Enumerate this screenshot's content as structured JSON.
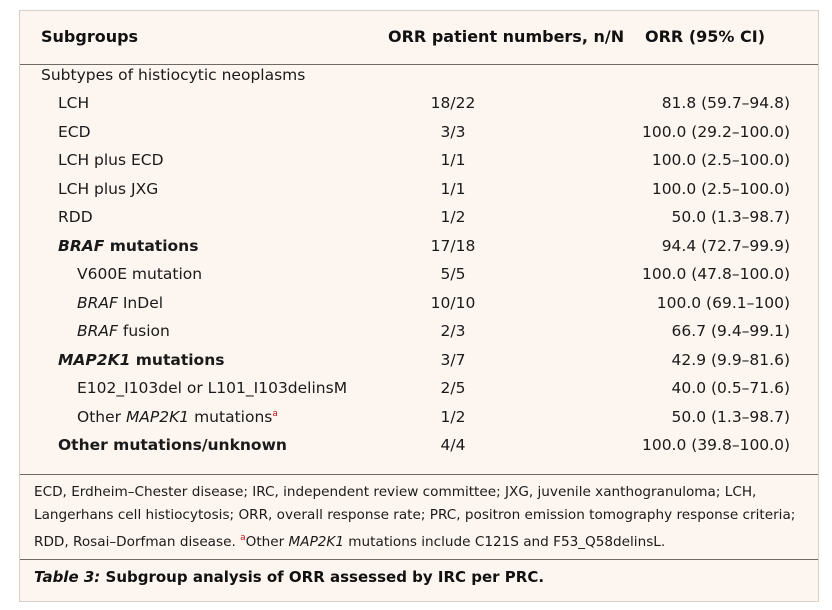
{
  "header": {
    "col_subgroups": "Subgroups",
    "col_numbers": "ORR patient numbers, n/N",
    "col_orr": "ORR (95% CI)"
  },
  "section_label": "Subtypes of histiocytic neoplasms",
  "rows": [
    {
      "subgroup": "LCH",
      "n": "18/22",
      "orr": "81.8 (59.7–94.8)"
    },
    {
      "subgroup": "ECD",
      "n": "3/3",
      "orr": "100.0 (29.2–100.0)"
    },
    {
      "subgroup": "LCH plus ECD",
      "n": "1/1",
      "orr": "100.0 (2.5–100.0)"
    },
    {
      "subgroup": "LCH plus JXG",
      "n": "1/1",
      "orr": "100.0 (2.5–100.0)"
    },
    {
      "subgroup": "RDD",
      "n": "1/2",
      "orr": "50.0 (1.3–98.7)"
    },
    {
      "subgroup_italic": "BRAF",
      "subgroup": " mutations",
      "n": "17/18",
      "orr": "94.4 (72.7–99.9)"
    },
    {
      "subgroup": "V600E mutation",
      "n": "5/5",
      "orr": "100.0 (47.8–100.0)"
    },
    {
      "subgroup_italic": "BRAF",
      "subgroup": " InDel",
      "n": "10/10",
      "orr": "100.0 (69.1–100)"
    },
    {
      "subgroup_italic": "BRAF",
      "subgroup": " fusion",
      "n": "2/3",
      "orr": "66.7 (9.4–99.1)"
    },
    {
      "subgroup_italic": "MAP2K1",
      "subgroup": " mutations",
      "n": "3/7",
      "orr": "42.9 (9.9–81.6)"
    },
    {
      "subgroup": "E102_I103del or L101_I103delinsM",
      "n": "2/5",
      "orr": "40.0 (0.5–71.6)"
    },
    {
      "subgroup_pre": "Other ",
      "subgroup_italic": "MAP2K1",
      "subgroup": " mutations",
      "sup": "a",
      "n": "1/2",
      "orr": "50.0 (1.3–98.7)"
    },
    {
      "subgroup": "Other mutations/unknown",
      "n": "4/4",
      "orr": "100.0 (39.8–100.0)"
    }
  ],
  "footnote": {
    "abbreviations": "ECD, Erdheim–Chester disease; IRC, independent review committee; JXG, juvenile xanthogranuloma; LCH, Langerhans cell histiocytosis; ORR, overall response rate; PRC, positron emission tomography response criteria; RDD, Rosai–Dorfman disease. ",
    "sup": "a",
    "note_pre": "Other ",
    "note_italic": "MAP2K1",
    "note_post": " mutations include C121S and F53_Q58delinsL."
  },
  "caption": {
    "label": "Table 3:",
    "text": " Subgroup analysis of ORR assessed by IRC per PRC."
  },
  "colors": {
    "background": "#fdf5ef",
    "rule": "#6d6a67",
    "superscript": "#c4161c"
  }
}
